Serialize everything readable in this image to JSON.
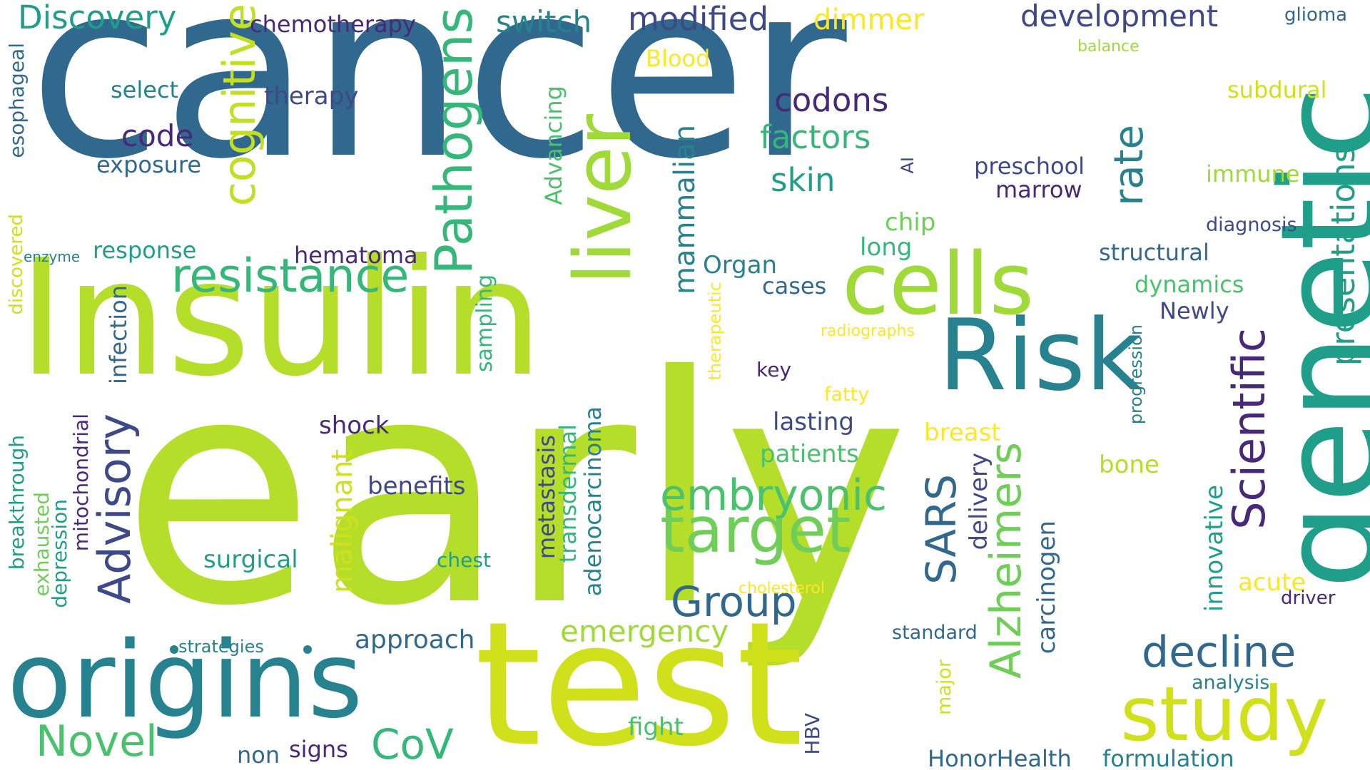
{
  "palette": {
    "c1": "#31688e",
    "c2": "#26828e",
    "c3": "#1f9e89",
    "c4": "#35b779",
    "c5": "#6ece58",
    "c6": "#b5de2b",
    "c7": "#fde725",
    "c8": "#482878",
    "c9": "#3e4989",
    "c10": "#a0da39"
  },
  "words": [
    {
      "t": "cancer",
      "c": "#31688e"
    },
    {
      "t": "early",
      "c": "#b5de2b"
    },
    {
      "t": "Insulin",
      "c": "#b5de2b"
    },
    {
      "t": "test",
      "c": "#d0e11c"
    },
    {
      "t": "genetic",
      "c": "#1f9e89"
    },
    {
      "t": "origins",
      "c": "#26828e"
    },
    {
      "t": "Risk",
      "c": "#26828e"
    },
    {
      "t": "cells",
      "c": "#a0da39"
    },
    {
      "t": "liver",
      "c": "#a0da39"
    },
    {
      "t": "study",
      "c": "#d0e11c"
    },
    {
      "t": "target",
      "c": "#6ece58"
    },
    {
      "t": "Pathogens",
      "c": "#35b779"
    },
    {
      "t": "resistance",
      "c": "#35b779"
    },
    {
      "t": "cognitive",
      "c": "#c2df23"
    },
    {
      "t": "Scientific",
      "c": "#482878"
    },
    {
      "t": "Advisory",
      "c": "#3e4989"
    },
    {
      "t": "Alzheimers",
      "c": "#6ece58"
    },
    {
      "t": "decline",
      "c": "#31688e"
    },
    {
      "t": "embryonic",
      "c": "#4ac16d"
    },
    {
      "t": "Novel",
      "c": "#4ac16d"
    },
    {
      "t": "CoV",
      "c": "#35b779"
    },
    {
      "t": "Group",
      "c": "#31688e"
    },
    {
      "t": "SARS",
      "c": "#31688e"
    },
    {
      "t": "rate",
      "c": "#26828e"
    },
    {
      "t": "presentations",
      "c": "#1f9e89"
    },
    {
      "t": "Discovery",
      "c": "#1f9e89"
    },
    {
      "t": "modified",
      "c": "#3e4989"
    },
    {
      "t": "development",
      "c": "#3e4989"
    },
    {
      "t": "switch",
      "c": "#26828e"
    },
    {
      "t": "dimmer",
      "c": "#fde725"
    },
    {
      "t": "chemotherapy",
      "c": "#482878"
    },
    {
      "t": "codons",
      "c": "#482878"
    },
    {
      "t": "factors",
      "c": "#35b779"
    },
    {
      "t": "skin",
      "c": "#1f9e89"
    },
    {
      "t": "code",
      "c": "#482878"
    },
    {
      "t": "emergency",
      "c": "#a0da39"
    },
    {
      "t": "malignant",
      "c": "#d0e11c"
    },
    {
      "t": "mammalian",
      "c": "#26828e"
    },
    {
      "t": "therapy",
      "c": "#3e4989"
    },
    {
      "t": "select",
      "c": "#26828e"
    },
    {
      "t": "exposure",
      "c": "#31688e"
    },
    {
      "t": "Blood",
      "c": "#fde725"
    },
    {
      "t": "glioma",
      "c": "#31688e"
    },
    {
      "t": "balance",
      "c": "#a0da39"
    },
    {
      "t": "subdural",
      "c": "#d0e11c"
    },
    {
      "t": "immune",
      "c": "#a0da39"
    },
    {
      "t": "diagnosis",
      "c": "#3e4989"
    },
    {
      "t": "structural",
      "c": "#31688e"
    },
    {
      "t": "dynamics",
      "c": "#4ac16d"
    },
    {
      "t": "Newly",
      "c": "#3e4989"
    },
    {
      "t": "preschool",
      "c": "#3e4989"
    },
    {
      "t": "marrow",
      "c": "#482878"
    },
    {
      "t": "AI",
      "c": "#3e4989"
    },
    {
      "t": "chip",
      "c": "#6ece58"
    },
    {
      "t": "long",
      "c": "#35b779"
    },
    {
      "t": "Organ",
      "c": "#26828e"
    },
    {
      "t": "cases",
      "c": "#31688e"
    },
    {
      "t": "radiographs",
      "c": "#fde725"
    },
    {
      "t": "therapeutic",
      "c": "#fde725"
    },
    {
      "t": "key",
      "c": "#482878"
    },
    {
      "t": "fatty",
      "c": "#fde725"
    },
    {
      "t": "lasting",
      "c": "#3e4989"
    },
    {
      "t": "patients",
      "c": "#4ac16d"
    },
    {
      "t": "breast",
      "c": "#fde725"
    },
    {
      "t": "bone",
      "c": "#b5de2b"
    },
    {
      "t": "progression",
      "c": "#26828e"
    },
    {
      "t": "delivery",
      "c": "#3e4989"
    },
    {
      "t": "carcinogen",
      "c": "#31688e"
    },
    {
      "t": "innovative",
      "c": "#1f9e89"
    },
    {
      "t": "acute",
      "c": "#fde725"
    },
    {
      "t": "driver",
      "c": "#482878"
    },
    {
      "t": "analysis",
      "c": "#26828e"
    },
    {
      "t": "standard",
      "c": "#31688e"
    },
    {
      "t": "major",
      "c": "#d0e11c"
    },
    {
      "t": "HBV",
      "c": "#3e4989"
    },
    {
      "t": "cholesterol",
      "c": "#fde725"
    },
    {
      "t": "HonorHealth",
      "c": "#31688e"
    },
    {
      "t": "formulation",
      "c": "#26828e"
    },
    {
      "t": "fight",
      "c": "#4ac16d"
    },
    {
      "t": "signs",
      "c": "#482878"
    },
    {
      "t": "non",
      "c": "#31688e"
    },
    {
      "t": "approach",
      "c": "#31688e"
    },
    {
      "t": "chest",
      "c": "#1f9e89"
    },
    {
      "t": "surgical",
      "c": "#1f9e89"
    },
    {
      "t": "benefits",
      "c": "#3e4989"
    },
    {
      "t": "metastasis",
      "c": "#3e4989"
    },
    {
      "t": "transdermal",
      "c": "#35b779"
    },
    {
      "t": "adenocarcinoma",
      "c": "#26828e"
    },
    {
      "t": "sampling",
      "c": "#35b779"
    },
    {
      "t": "hematoma",
      "c": "#482878"
    },
    {
      "t": "shock",
      "c": "#482878"
    },
    {
      "t": "infection",
      "c": "#31688e"
    },
    {
      "t": "response",
      "c": "#1f9e89"
    },
    {
      "t": "enzyme",
      "c": "#26828e"
    },
    {
      "t": "discovered",
      "c": "#d0e11c"
    },
    {
      "t": "esophageal",
      "c": "#31688e"
    },
    {
      "t": "breakthrough",
      "c": "#1f9e89"
    },
    {
      "t": "exhausted",
      "c": "#6ece58"
    },
    {
      "t": "depression",
      "c": "#1f9e89"
    },
    {
      "t": "mitochondrial",
      "c": "#482878"
    },
    {
      "t": "strategies",
      "c": "#26828e"
    },
    {
      "t": "Advancing",
      "c": "#4ac16d"
    }
  ]
}
